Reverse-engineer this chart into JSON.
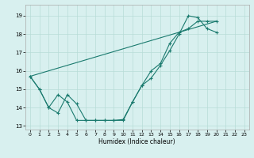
{
  "xlabel": "Humidex (Indice chaleur)",
  "x_all": [
    0,
    1,
    2,
    3,
    4,
    5,
    6,
    7,
    8,
    9,
    10,
    11,
    12,
    13,
    14,
    15,
    16,
    17,
    18,
    19,
    20,
    21,
    22,
    23
  ],
  "line1_y": [
    15.7,
    15.0,
    14.0,
    13.7,
    14.7,
    14.2,
    13.3,
    13.3,
    13.3,
    13.3,
    13.3,
    14.3,
    15.2,
    15.6,
    16.3,
    17.1,
    18.0,
    19.0,
    18.9,
    18.3,
    18.1,
    null,
    null,
    null
  ],
  "line2_y": [
    15.7,
    15.0,
    14.0,
    14.7,
    14.3,
    13.3,
    13.3,
    13.3,
    13.3,
    13.3,
    13.35,
    14.3,
    15.2,
    16.0,
    16.4,
    17.5,
    18.1,
    18.3,
    18.7,
    18.7,
    18.7,
    null,
    null,
    null
  ],
  "line3_x": [
    0,
    20
  ],
  "line3_y": [
    15.7,
    18.7
  ],
  "line_color": "#1a7a6e",
  "bg_color": "#d8f0ef",
  "grid_color": "#b8dcd8",
  "ylim": [
    12.8,
    19.6
  ],
  "yticks": [
    13,
    14,
    15,
    16,
    17,
    18,
    19
  ],
  "xlim": [
    -0.5,
    23.5
  ],
  "xticks": [
    0,
    1,
    2,
    3,
    4,
    5,
    6,
    7,
    8,
    9,
    10,
    11,
    12,
    13,
    14,
    15,
    16,
    17,
    18,
    19,
    20,
    21,
    22,
    23
  ]
}
